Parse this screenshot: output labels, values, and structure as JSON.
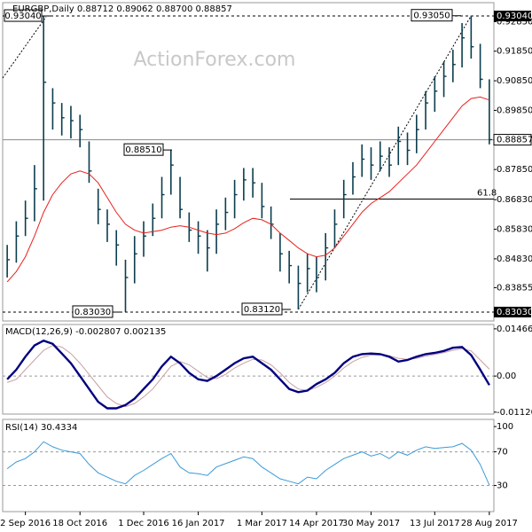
{
  "chart_data": [
    {
      "type": "ohlc",
      "title": "EURGBP,Daily 0.88712 0.89062 0.88700 0.88857",
      "watermark": "ActionForex.com",
      "color": "#0b3d4e",
      "categories": [
        null,
        null,
        "2 Sep 2016",
        null,
        null,
        null,
        null,
        null,
        "18 Oct 2016",
        null,
        null,
        null,
        null,
        null,
        null,
        "1 Dec 2016",
        null,
        null,
        null,
        null,
        null,
        "16 Jan 2017",
        null,
        null,
        null,
        null,
        null,
        null,
        "1 Mar 2017",
        null,
        null,
        null,
        null,
        null,
        "14 Apr 2017",
        null,
        null,
        null,
        null,
        null,
        "30 May 2017",
        null,
        null,
        null,
        null,
        null,
        null,
        "13 Jul 2017",
        null,
        null,
        null,
        null,
        null,
        "28 Aug 2017"
      ],
      "high": [
        0.853,
        0.861,
        0.868,
        0.88,
        0.9304,
        0.906,
        0.901,
        0.9,
        0.897,
        0.888,
        0.872,
        0.865,
        0.858,
        0.848,
        0.856,
        0.861,
        0.867,
        0.876,
        0.8851,
        0.876,
        0.864,
        0.861,
        0.858,
        0.865,
        0.869,
        0.875,
        0.879,
        0.879,
        0.874,
        0.866,
        0.857,
        0.851,
        0.846,
        0.85,
        0.849,
        0.857,
        0.865,
        0.875,
        0.881,
        0.887,
        0.886,
        0.888,
        0.886,
        0.893,
        0.891,
        0.897,
        0.905,
        0.91,
        0.915,
        0.919,
        0.928,
        0.9305,
        0.921,
        0.909
      ],
      "low": [
        0.842,
        0.847,
        0.856,
        0.861,
        0.868,
        0.892,
        0.89,
        0.889,
        0.886,
        0.874,
        0.86,
        0.854,
        0.846,
        0.8303,
        0.84,
        0.849,
        0.856,
        0.862,
        0.87,
        0.862,
        0.854,
        0.85,
        0.844,
        0.85,
        0.858,
        0.862,
        0.868,
        0.869,
        0.862,
        0.855,
        0.844,
        0.84,
        0.8312,
        0.837,
        0.837,
        0.841,
        0.852,
        0.862,
        0.87,
        0.876,
        0.875,
        0.878,
        0.876,
        0.88,
        0.88,
        0.884,
        0.892,
        0.898,
        0.903,
        0.908,
        0.913,
        0.916,
        0.906,
        0.887
      ],
      "close": [
        0.848,
        0.856,
        0.862,
        0.872,
        0.908,
        0.901,
        0.896,
        0.895,
        0.892,
        0.878,
        0.865,
        0.86,
        0.853,
        0.842,
        0.85,
        0.856,
        0.862,
        0.87,
        0.88,
        0.865,
        0.858,
        0.856,
        0.852,
        0.86,
        0.864,
        0.87,
        0.875,
        0.874,
        0.866,
        0.86,
        0.85,
        0.846,
        0.84,
        0.845,
        0.842,
        0.852,
        0.86,
        0.87,
        0.876,
        0.882,
        0.88,
        0.883,
        0.88,
        0.888,
        0.885,
        0.892,
        0.901,
        0.905,
        0.91,
        0.914,
        0.923,
        0.92,
        0.909,
        0.8886
      ],
      "ma": {
        "color": "#e8201b",
        "values": [
          0.8405,
          0.844,
          0.849,
          0.856,
          0.864,
          0.87,
          0.874,
          0.877,
          0.878,
          0.877,
          0.874,
          0.869,
          0.864,
          0.86,
          0.858,
          0.857,
          0.8575,
          0.858,
          0.859,
          0.8595,
          0.859,
          0.858,
          0.857,
          0.8565,
          0.857,
          0.8585,
          0.8605,
          0.862,
          0.8615,
          0.86,
          0.857,
          0.8545,
          0.852,
          0.85,
          0.849,
          0.8495,
          0.852,
          0.856,
          0.86,
          0.864,
          0.867,
          0.869,
          0.871,
          0.874,
          0.877,
          0.88,
          0.884,
          0.888,
          0.892,
          0.896,
          0.9,
          0.9025,
          0.903,
          0.902
        ]
      },
      "ylim": [
        0.82729,
        0.93491
      ],
      "yticks": [
        {
          "value": 0.9285,
          "label": "0.92850"
        },
        {
          "value": 0.9185,
          "label": "0.91850"
        },
        {
          "value": 0.9085,
          "label": "0.90850"
        },
        {
          "value": 0.8985,
          "label": "0.89850"
        },
        {
          "value": 0.8785,
          "label": "0.87850"
        },
        {
          "value": 0.8683,
          "label": "0.86830"
        },
        {
          "value": 0.8583,
          "label": "0.85830"
        },
        {
          "value": 0.8483,
          "label": "0.84830"
        },
        {
          "value": 0.83855,
          "label": "0.83855"
        }
      ],
      "levels": [
        {
          "value": 0.9304,
          "label": "0.93040"
        },
        {
          "value": 0.8303,
          "label": "0.83030"
        }
      ],
      "last": {
        "value": 0.88857,
        "label": "0.88857"
      },
      "annotations": [
        {
          "value": 0.9304,
          "label": "0.93040"
        },
        {
          "value": 0.8851,
          "label": "0.88510"
        },
        {
          "value": 0.8303,
          "label": "0.83030"
        },
        {
          "value": 0.8312,
          "label": "0.83120"
        },
        {
          "value": 0.9305,
          "label": "0.93050"
        }
      ],
      "fib": {
        "text": "61.8",
        "price": 0.8685
      }
    },
    {
      "type": "line",
      "title": "MACD(12,26,9) -0.002807 0.002135",
      "series": [
        {
          "color": "#000080",
          "width": 2.4,
          "values": [
            -0.001,
            0.002,
            0.006,
            0.0095,
            0.011,
            0.01,
            0.007,
            0.004,
            0.0,
            -0.004,
            -0.008,
            -0.01,
            -0.01,
            -0.009,
            -0.007,
            -0.004,
            -0.001,
            0.003,
            0.006,
            0.004,
            0.001,
            -0.001,
            -0.0015,
            0.0,
            0.002,
            0.004,
            0.0055,
            0.006,
            0.004,
            0.002,
            -0.001,
            -0.004,
            -0.005,
            -0.0045,
            -0.0025,
            -0.001,
            0.001,
            0.004,
            0.006,
            0.0068,
            0.007,
            0.0068,
            0.006,
            0.0045,
            0.005,
            0.006,
            0.0068,
            0.0072,
            0.0078,
            0.0088,
            0.009,
            0.0065,
            0.002,
            -0.002807
          ]
        },
        {
          "color": "#c8a0a0",
          "width": 1,
          "values": [
            -0.002,
            -0.001,
            0.002,
            0.005,
            0.008,
            0.0095,
            0.009,
            0.007,
            0.004,
            0.0005,
            -0.003,
            -0.0065,
            -0.0085,
            -0.0095,
            -0.0085,
            -0.0065,
            -0.004,
            -0.0005,
            0.003,
            0.0045,
            0.0035,
            0.0015,
            -0.0005,
            -0.0008,
            0.0005,
            0.0025,
            0.004,
            0.0052,
            0.005,
            0.0035,
            0.001,
            -0.002,
            -0.004,
            -0.0045,
            -0.0035,
            -0.002,
            0.0,
            0.0025,
            0.0045,
            0.0058,
            0.0065,
            0.0066,
            0.0063,
            0.0055,
            0.0052,
            0.0055,
            0.0062,
            0.0067,
            0.0073,
            0.008,
            0.0085,
            0.0078,
            0.005,
            0.002135
          ]
        }
      ],
      "ylim": [
        -0.0118,
        0.016
      ],
      "yticks": [
        0.014661,
        {
          "value": 0,
          "label": "0.00"
        },
        -0.011202
      ],
      "grid_levels": [
        0
      ]
    },
    {
      "type": "line",
      "title": "RSI(14) 30.4334",
      "series": [
        {
          "color": "#3a9ad9",
          "width": 1,
          "values": [
            50,
            58,
            62,
            70,
            82,
            76,
            72,
            70,
            68,
            55,
            45,
            40,
            35,
            32,
            42,
            48,
            55,
            62,
            68,
            52,
            45,
            44,
            42,
            52,
            56,
            60,
            64,
            62,
            52,
            45,
            38,
            35,
            32,
            40,
            38,
            48,
            55,
            62,
            66,
            70,
            65,
            68,
            62,
            70,
            66,
            72,
            76,
            74,
            75,
            76,
            80,
            72,
            55,
            30.4334
          ]
        }
      ],
      "ylim": [
        -1,
        108.5
      ],
      "yticks": [
        100,
        70,
        30
      ],
      "grid_levels": [
        70,
        30
      ]
    }
  ]
}
